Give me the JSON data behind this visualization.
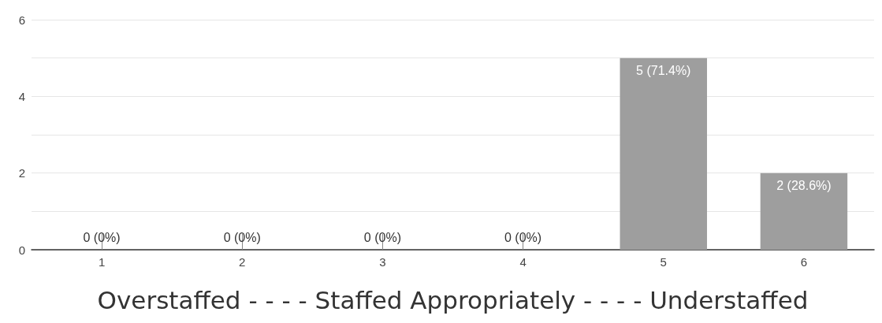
{
  "chart_data": {
    "type": "bar",
    "categories": [
      "1",
      "2",
      "3",
      "4",
      "5",
      "6"
    ],
    "values": [
      0,
      0,
      0,
      0,
      5,
      2
    ],
    "value_labels": [
      "0 (0%)",
      "0 (0%)",
      "0 (0%)",
      "0 (0%)",
      "5 (71.4%)",
      "2 (28.6%)"
    ],
    "color": "#9e9e9e",
    "xlabel": "Overstaffed - - - - Staffed Appropriately - - - - Understaffed",
    "ylim": [
      0,
      6
    ],
    "yticks": [
      0,
      {
        "value": 1,
        "label": null
      },
      2,
      {
        "value": 3,
        "label": null
      },
      4,
      {
        "value": 5,
        "label": null
      },
      6
    ],
    "grid": "y"
  }
}
